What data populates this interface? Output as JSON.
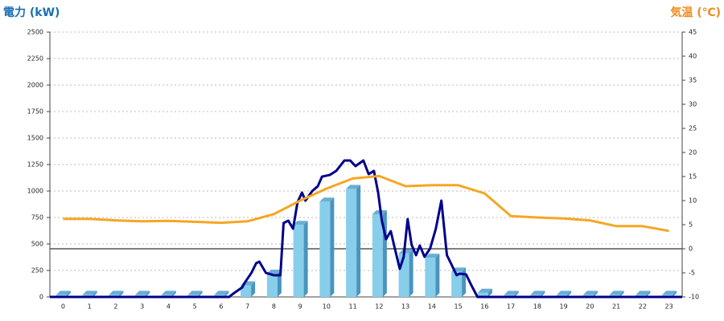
{
  "chart_data": {
    "type": "bar",
    "ylabel": "電力 (kW)",
    "y2label": "気温 (℃)",
    "categories": [
      "0",
      "1",
      "2",
      "3",
      "4",
      "5",
      "6",
      "7",
      "8",
      "9",
      "10",
      "11",
      "12",
      "13",
      "14",
      "15",
      "16",
      "17",
      "18",
      "19",
      "20",
      "21",
      "22",
      "23"
    ],
    "ylim": [
      0,
      2500
    ],
    "yticks": [
      0,
      250,
      500,
      750,
      1000,
      1250,
      1500,
      1750,
      2000,
      2250,
      2500
    ],
    "y2lim": [
      -10,
      45
    ],
    "y2ticks": [
      -10,
      -5,
      0,
      5,
      10,
      15,
      20,
      25,
      30,
      35,
      40,
      45
    ],
    "grid": true,
    "series": [
      {
        "type": "bar",
        "color": "#87ceeb",
        "values": [
          20,
          20,
          20,
          20,
          20,
          20,
          20,
          110,
          220,
          680,
          900,
          1020,
          780,
          410,
          370,
          240,
          40,
          20,
          20,
          20,
          20,
          20,
          20,
          20
        ]
      },
      {
        "type": "line",
        "color": "#00008b",
        "x": [
          -0.5,
          6.3,
          6.5,
          6.8,
          6.9,
          7.15,
          7.33,
          7.45,
          7.7,
          8.0,
          8.25,
          8.37,
          8.55,
          8.73,
          8.9,
          9.07,
          9.2,
          9.46,
          9.67,
          9.83,
          10.13,
          10.37,
          10.68,
          10.9,
          11.1,
          11.4,
          11.6,
          11.8,
          11.96,
          12.1,
          12.26,
          12.44,
          12.56,
          12.78,
          12.93,
          13.08,
          13.23,
          13.4,
          13.54,
          13.72,
          13.93,
          14.15,
          14.36,
          14.57,
          14.75,
          14.94,
          15.06,
          15.3,
          15.49,
          15.73,
          23.5
        ],
        "values": [
          0,
          0,
          38,
          90,
          136,
          227,
          318,
          333,
          227,
          205,
          205,
          697,
          720,
          644,
          894,
          985,
          909,
          1000,
          1045,
          1136,
          1152,
          1190,
          1288,
          1288,
          1235,
          1288,
          1159,
          1190,
          985,
          720,
          545,
          621,
          492,
          265,
          379,
          735,
          492,
          394,
          485,
          379,
          455,
          644,
          909,
          394,
          303,
          205,
          220,
          212,
          114,
          0,
          0
        ]
      },
      {
        "type": "line",
        "axis": "y2",
        "color": "#f5a623",
        "values": [
          6.2,
          6.2,
          5.9,
          5.7,
          5.8,
          5.6,
          5.4,
          5.7,
          7.2,
          10,
          12.5,
          14.6,
          15.1,
          13,
          13.2,
          13.2,
          11.5,
          6.8,
          6.5,
          6.3,
          5.9,
          4.7,
          4.7,
          3.7
        ]
      }
    ]
  }
}
